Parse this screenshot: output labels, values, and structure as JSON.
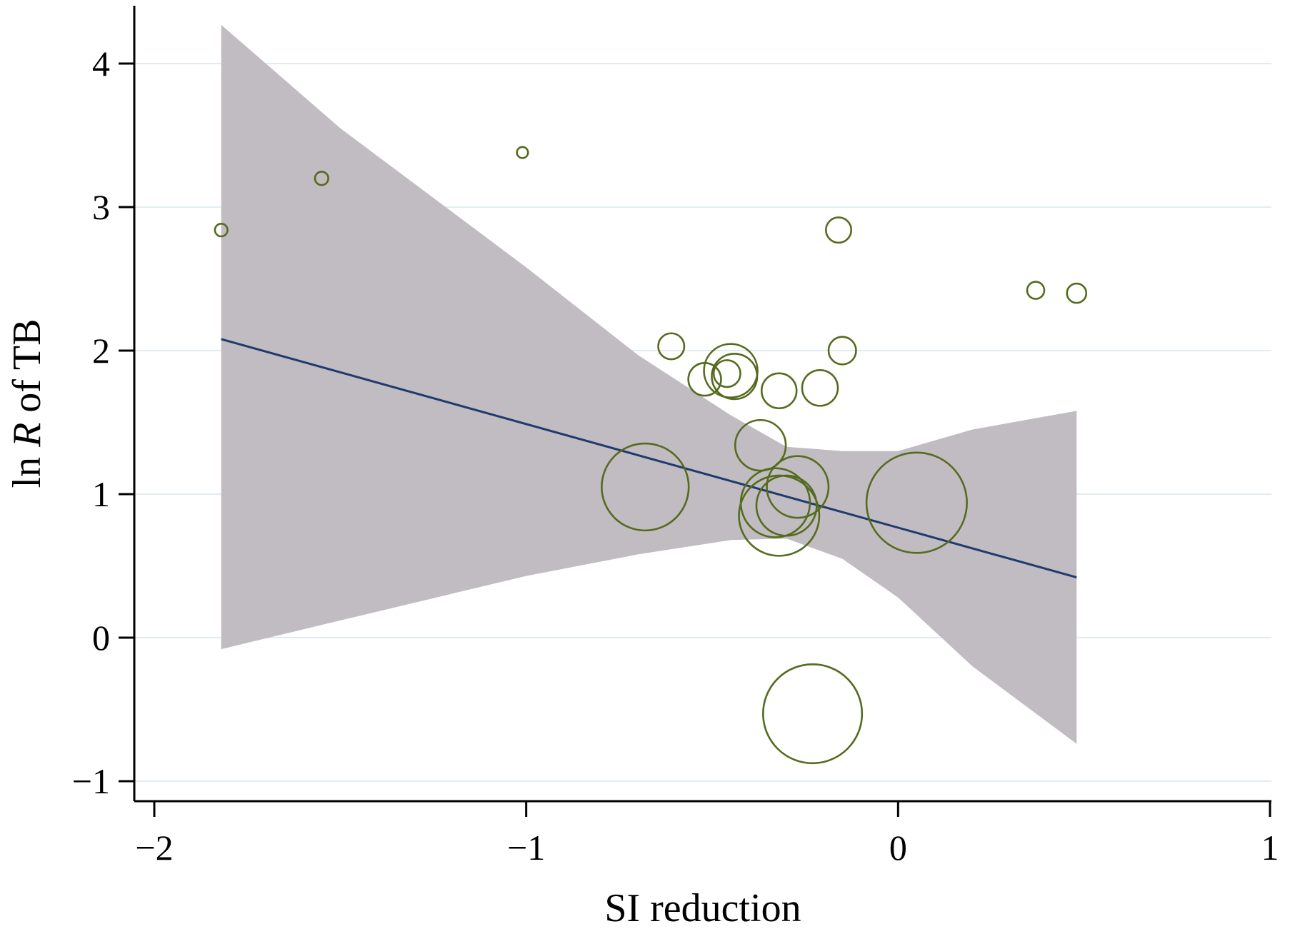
{
  "chart_data": {
    "type": "scatter",
    "title": "",
    "xlabel": "SI reduction",
    "ylabel_prefix": "ln ",
    "ylabel_italic": "R",
    "ylabel_suffix": " of TB",
    "xlim": [
      -2.05,
      1.05
    ],
    "ylim": [
      -1.15,
      4.45
    ],
    "xticks": [
      -2,
      -1,
      0,
      1
    ],
    "xtick_labels": [
      "−2",
      "−1",
      "0",
      "1"
    ],
    "yticks": [
      -1,
      0,
      1,
      2,
      3,
      4
    ],
    "ytick_labels": [
      "−1",
      "0",
      "1",
      "2",
      "3",
      "4"
    ],
    "grid": true,
    "legend": "none",
    "colors": {
      "points": "#556b1e",
      "fit_line": "#1f3a6e",
      "ci_band": "#c0bcc1",
      "grid": "#e2ecf0",
      "axis": "#000000"
    },
    "fit_line": {
      "x": [
        -1.82,
        0.48
      ],
      "y": [
        2.08,
        0.42
      ]
    },
    "confidence_band": {
      "x": [
        -1.82,
        -1.5,
        -1.0,
        -0.7,
        -0.45,
        -0.3,
        -0.15,
        0.0,
        0.2,
        0.48
      ],
      "upper": [
        4.27,
        3.55,
        2.58,
        1.97,
        1.55,
        1.33,
        1.3,
        1.3,
        1.45,
        1.58
      ],
      "lower": [
        -0.08,
        0.12,
        0.43,
        0.58,
        0.68,
        0.69,
        0.55,
        0.28,
        -0.2,
        -0.74
      ]
    },
    "points": [
      {
        "x": -1.82,
        "y": 2.84,
        "r": 0.017
      },
      {
        "x": -1.55,
        "y": 3.2,
        "r": 0.018
      },
      {
        "x": -1.01,
        "y": 3.38,
        "r": 0.015
      },
      {
        "x": -0.16,
        "y": 2.84,
        "r": 0.034
      },
      {
        "x": 0.37,
        "y": 2.42,
        "r": 0.023
      },
      {
        "x": 0.48,
        "y": 2.4,
        "r": 0.026
      },
      {
        "x": -0.61,
        "y": 2.03,
        "r": 0.035
      },
      {
        "x": -0.15,
        "y": 2.0,
        "r": 0.037
      },
      {
        "x": -0.45,
        "y": 1.86,
        "r": 0.072
      },
      {
        "x": -0.44,
        "y": 1.82,
        "r": 0.061
      },
      {
        "x": -0.52,
        "y": 1.8,
        "r": 0.044
      },
      {
        "x": -0.46,
        "y": 1.84,
        "r": 0.036
      },
      {
        "x": -0.32,
        "y": 1.72,
        "r": 0.047
      },
      {
        "x": -0.21,
        "y": 1.74,
        "r": 0.048
      },
      {
        "x": -0.37,
        "y": 1.34,
        "r": 0.068
      },
      {
        "x": -0.68,
        "y": 1.05,
        "r": 0.117
      },
      {
        "x": -0.27,
        "y": 1.05,
        "r": 0.083
      },
      {
        "x": -0.33,
        "y": 0.94,
        "r": 0.093
      },
      {
        "x": -0.3,
        "y": 0.92,
        "r": 0.081
      },
      {
        "x": -0.32,
        "y": 0.85,
        "r": 0.108
      },
      {
        "x": 0.05,
        "y": 0.94,
        "r": 0.135
      },
      {
        "x": -0.23,
        "y": -0.53,
        "r": 0.133
      }
    ]
  }
}
